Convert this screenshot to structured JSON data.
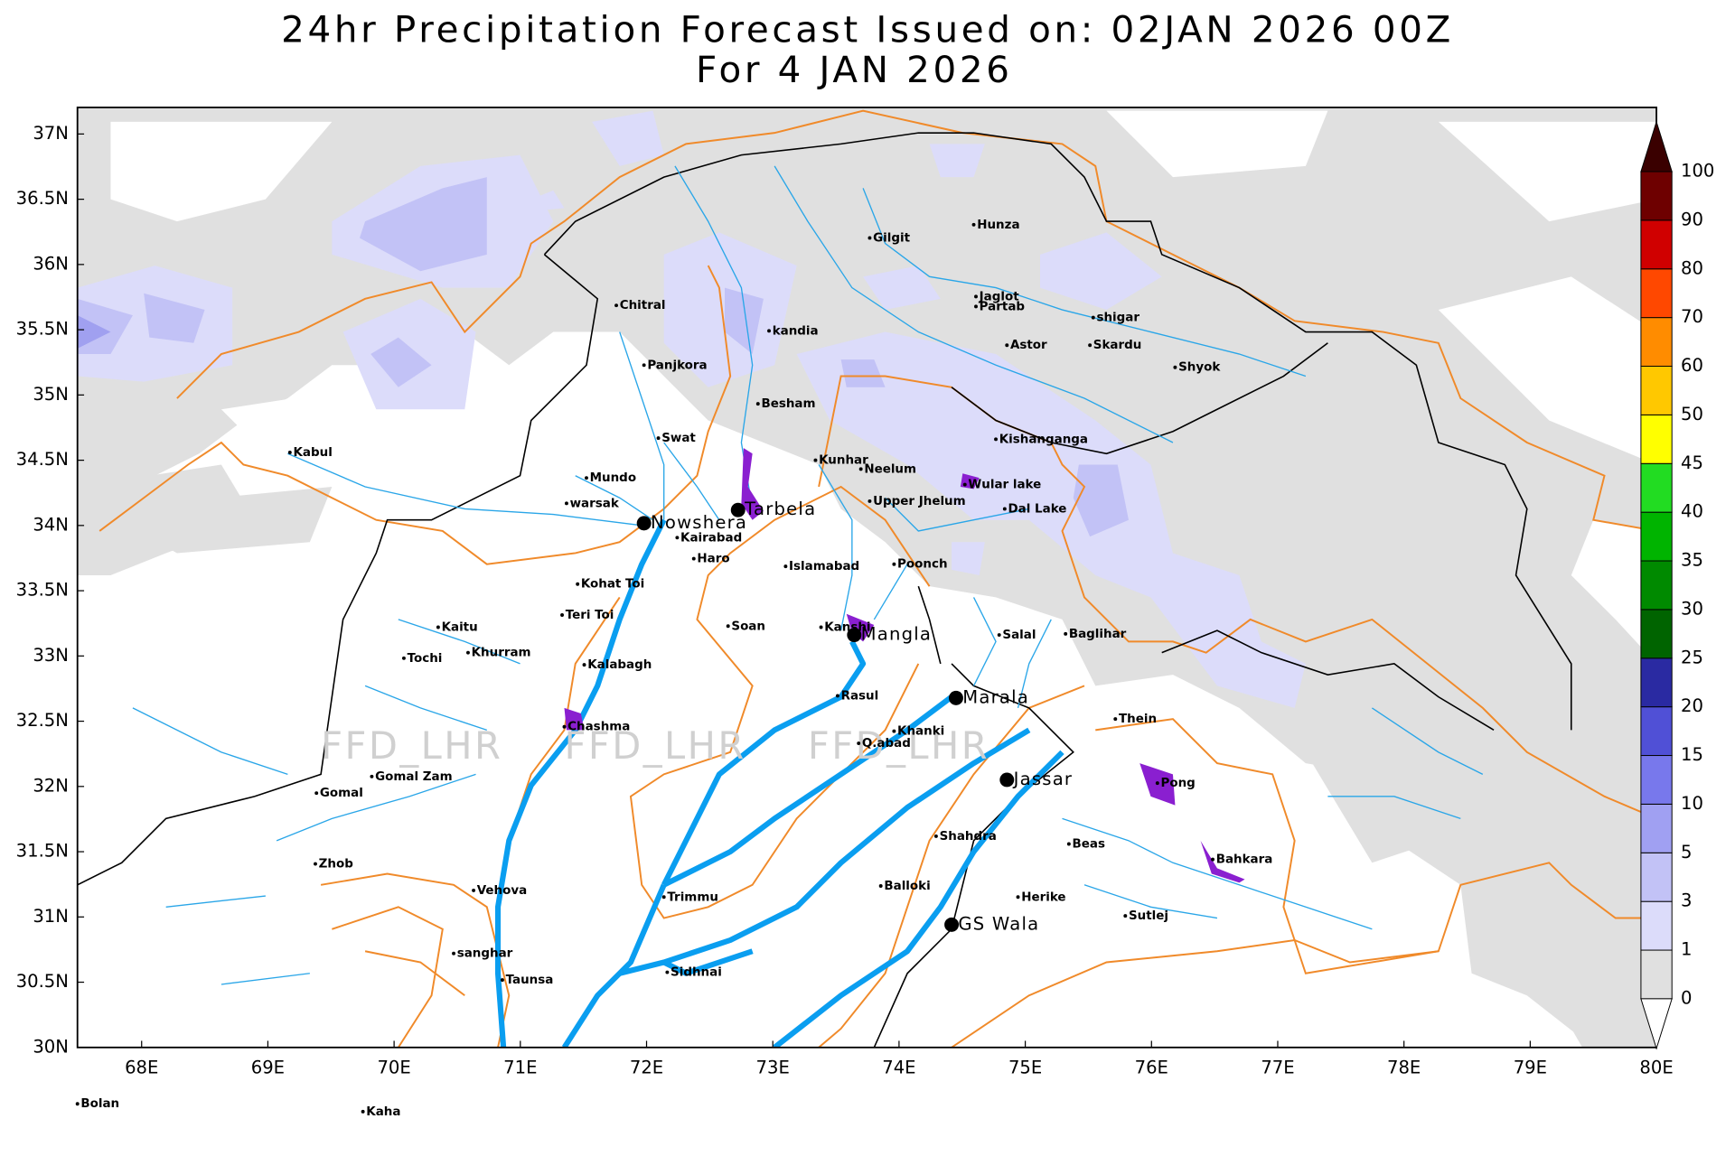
{
  "title": [
    "24hr Precipitation Forecast Issued on:  02JAN 2026 00Z",
    "For 4 JAN 2026"
  ],
  "map": {
    "lat_labels": [
      "37N",
      "36.5N",
      "36N",
      "35.5N",
      "35N",
      "34.5N",
      "34N",
      "33.5N",
      "33N",
      "32.5N",
      "32N",
      "31.5N",
      "31N",
      "30.5N",
      "30N"
    ],
    "lon_labels": [
      "68E",
      "69E",
      "70E",
      "71E",
      "72E",
      "73E",
      "74E",
      "75E",
      "76E",
      "77E",
      "78E",
      "79E",
      "80E"
    ],
    "watermark": "FFD_LHR",
    "places": [
      "Gilgit",
      "Hunza",
      "Chitral",
      "Jaglot",
      "Partab",
      "shigar",
      "kandia",
      "Astor",
      "Skardu",
      "Shyok",
      "Panjkora",
      "Besham",
      "Swat",
      "Kishanganga",
      "Kabul",
      "Kunhar",
      "Neelum",
      "Mundo",
      "Wular lake",
      "warsak",
      "Upper Jhelum",
      "Dal Lake",
      "Nowshera",
      "Tarbela",
      "Kairabad",
      "Haro",
      "Islamabad",
      "Poonch",
      "Kohat Toi",
      "Teri Toi",
      "Soan",
      "Kaitu",
      "Kanshi",
      "Mangla",
      "Salal",
      "Baglihar",
      "Tochi",
      "Khurram",
      "Kalabagh",
      "Rasul",
      "Marala",
      "Chashma",
      "Thein",
      "Khanki",
      "Q.abad",
      "Gomal Zam",
      "Pong",
      "Jassar",
      "Gomal",
      "Shahdra",
      "Beas",
      "Zhob",
      "Bahkara",
      "Vehova",
      "Balloki",
      "Trimmu",
      "Herike",
      "Sutlej",
      "GS Wala",
      "sanghar",
      "Sidhnai",
      "Taunsa",
      "Bolan",
      "Kaha"
    ]
  },
  "legend": {
    "levels": [
      0,
      1,
      3,
      5,
      10,
      15,
      20,
      25,
      30,
      35,
      40,
      45,
      50,
      60,
      70,
      80,
      90,
      100
    ],
    "colors": [
      "#e0e0e0",
      "#dcdcfa",
      "#c2c2f6",
      "#a0a0f2",
      "#7878ec",
      "#5050d6",
      "#2a2aa2",
      "#006400",
      "#008a00",
      "#00b400",
      "#22dc22",
      "#ffff00",
      "#ffc800",
      "#ff8c00",
      "#ff4800",
      "#d00000",
      "#6e0000"
    ],
    "under_color": "#ffffff",
    "over_color": "#3a0000"
  }
}
